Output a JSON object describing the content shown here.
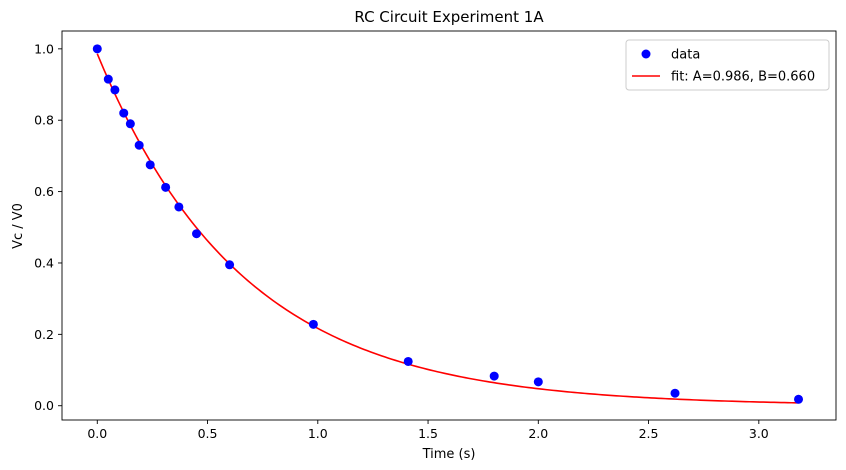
{
  "chart_data": {
    "type": "scatter",
    "title": "RC Circuit Experiment 1A",
    "xlabel": "Time (s)",
    "ylabel": "Vc / V0",
    "xlim": [
      -0.16,
      3.35
    ],
    "ylim": [
      -0.04,
      1.05
    ],
    "xticks": [
      0.0,
      0.5,
      1.0,
      1.5,
      2.0,
      2.5,
      3.0
    ],
    "xtick_labels": [
      "0.0",
      "0.5",
      "1.0",
      "1.5",
      "2.0",
      "2.5",
      "3.0"
    ],
    "yticks": [
      0.0,
      0.2,
      0.4,
      0.6,
      0.8,
      1.0
    ],
    "ytick_labels": [
      "0.0",
      "0.2",
      "0.4",
      "0.6",
      "0.8",
      "1.0"
    ],
    "grid": false,
    "legend_position": "top-right",
    "series": [
      {
        "name": "data",
        "kind": "scatter",
        "color": "#0000ff",
        "x": [
          0.0,
          0.05,
          0.08,
          0.12,
          0.15,
          0.19,
          0.24,
          0.31,
          0.37,
          0.45,
          0.6,
          0.98,
          1.41,
          1.8,
          2.0,
          2.62,
          3.18
        ],
        "y": [
          1.0,
          0.915,
          0.885,
          0.82,
          0.79,
          0.73,
          0.675,
          0.612,
          0.557,
          0.482,
          0.395,
          0.228,
          0.124,
          0.083,
          0.067,
          0.035,
          0.018
        ]
      },
      {
        "name": "fit: A=0.986, B=0.660",
        "kind": "line",
        "color": "#ff0000",
        "model": "A*exp(-t/B)",
        "A": 0.986,
        "B": 0.66,
        "x_range": [
          0.0,
          3.18
        ]
      }
    ]
  }
}
